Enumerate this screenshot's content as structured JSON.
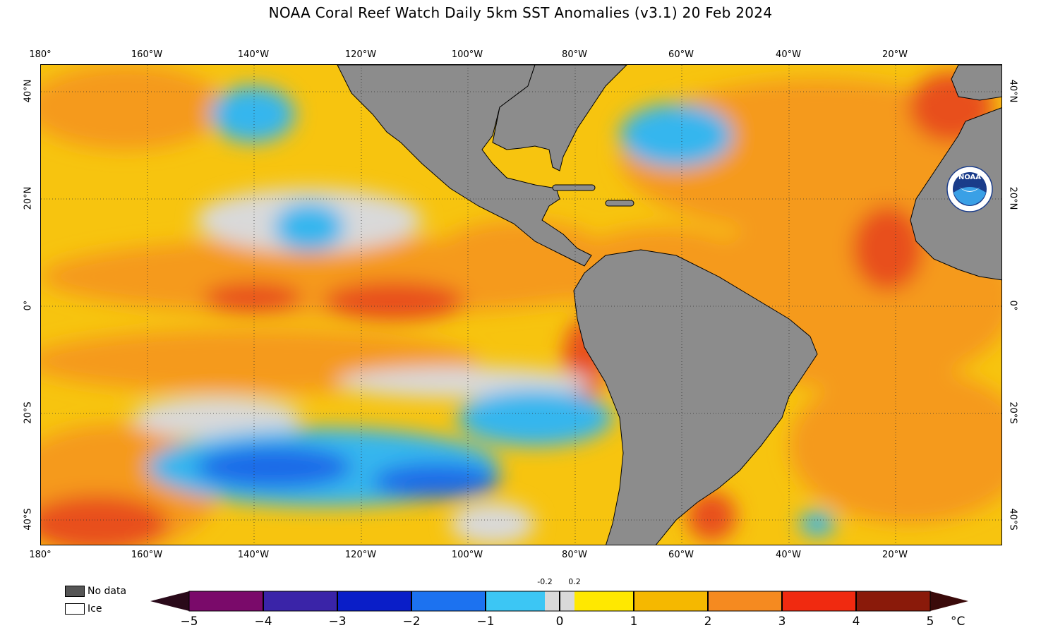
{
  "title": "NOAA Coral Reef Watch Daily 5km SST Anomalies  (v3.1)   20 Feb 2024",
  "longitude_labels": [
    "180°",
    "160°W",
    "140°W",
    "120°W",
    "100°W",
    "80°W",
    "60°W",
    "40°W",
    "20°W"
  ],
  "latitude_labels": [
    "40°N",
    "20°N",
    "0°",
    "20°S",
    "40°S"
  ],
  "legend": {
    "no_data_label": "No data",
    "ice_label": "Ice",
    "no_data_color": "#555555",
    "ice_color": "#ffffff"
  },
  "colorbar": {
    "unit": "°C",
    "tick_labels": [
      "−5",
      "−4",
      "−3",
      "−2",
      "−1",
      "0",
      "1",
      "2",
      "3",
      "4",
      "5"
    ],
    "small_labels": [
      "-0.2",
      "0.2"
    ],
    "colors": {
      "neg5_to_neg4": "#7a0a6a",
      "neg4_to_neg3": "#3a24a8",
      "neg3_to_neg2": "#0a1ec8",
      "neg2_to_neg1": "#1c72f0",
      "neg1_to_0": "#3cc6f4",
      "neutral": "#d9d9d9",
      "pos0_to_1": "#ffe800",
      "pos1_to_2": "#f5b800",
      "pos2_to_3": "#f58a20",
      "pos3_to_4": "#f02a10",
      "pos4_to_5": "#8a1a0a"
    }
  },
  "map_colors": {
    "land": "#8c8c8c",
    "ocean_base": "#f7c40f",
    "warm": "#f59a1e",
    "hot": "#e8501a",
    "cool": "#34b6ee",
    "cold": "#1a6ae8",
    "neutral": "#d9d9d9"
  },
  "logo": {
    "text": "NOAA"
  }
}
